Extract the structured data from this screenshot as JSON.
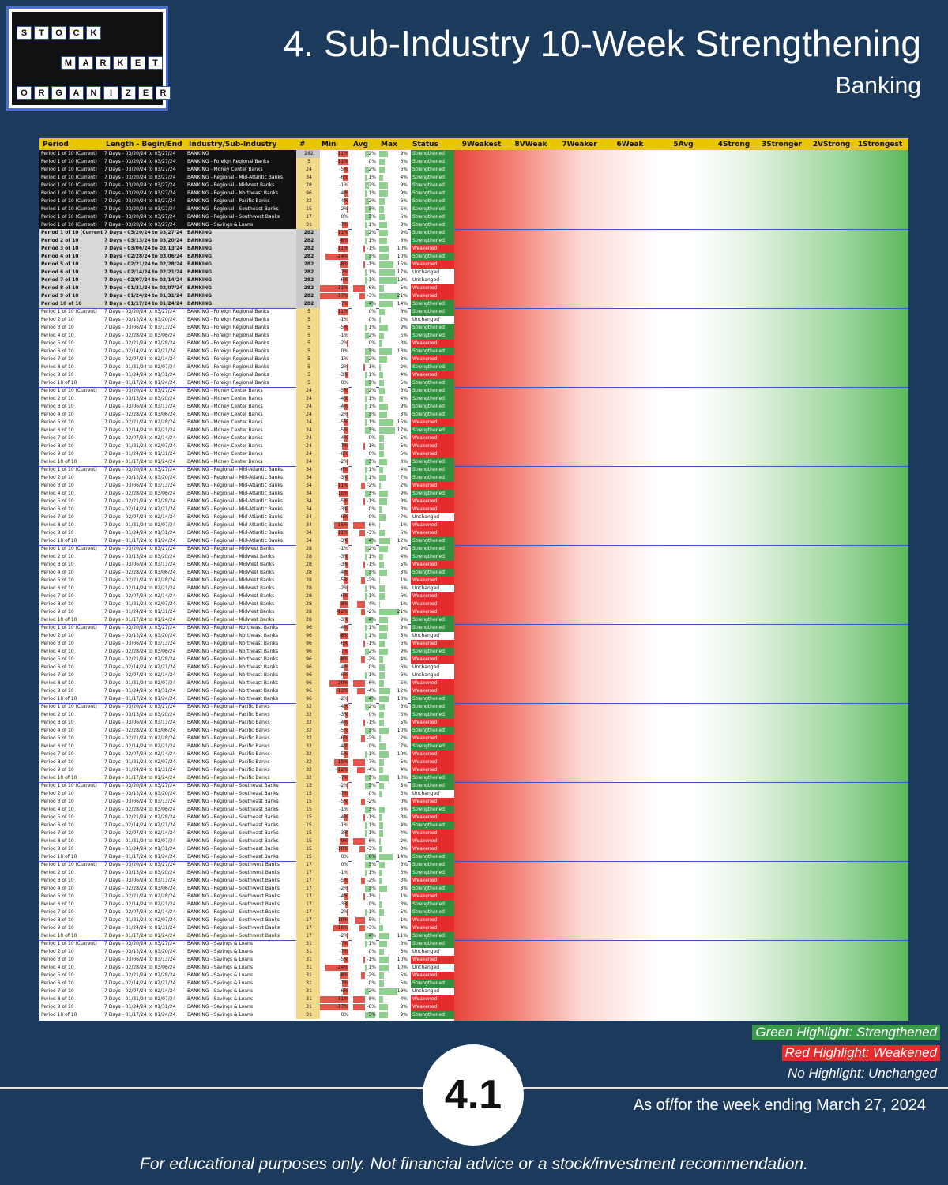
{
  "logo": {
    "row1": [
      "S",
      "T",
      "O",
      "C",
      "K"
    ],
    "row2": [
      "M",
      "A",
      "R",
      "K",
      "E",
      "T"
    ],
    "row3": [
      "O",
      "R",
      "G",
      "A",
      "N",
      "I",
      "Z",
      "E",
      "R"
    ]
  },
  "header": {
    "title": "4. Sub-Industry 10-Week Strengthening",
    "subtitle": "Banking"
  },
  "table": {
    "columns": [
      "Period",
      "Length - Begin/End",
      "Industry/Sub-Industry",
      "#",
      "Min",
      "Avg",
      "Max",
      "Status",
      "9Weakest",
      "8VWeak",
      "7Weaker",
      "6Weak",
      "5Avg",
      "4Strong",
      "3Stronger",
      "2VStrong",
      "1Strongest"
    ],
    "summary_rows": [
      {
        "p": "Period 1 of 10 (Current)",
        "l": "7 Days - 03/20/24 to 03/27/24",
        "i": "BANKING",
        "n": "282",
        "mn": "-11%",
        "av": "2%",
        "mx": "9%",
        "s": "Strengthened"
      },
      {
        "p": "Period 1 of 10 (Current)",
        "l": "7 Days - 03/20/24 to 03/27/24",
        "i": "BANKING - Foreign Regional Banks",
        "n": "5",
        "mn": "-11%",
        "av": "0%",
        "mx": "6%",
        "s": "Strengthened"
      },
      {
        "p": "Period 1 of 10 (Current)",
        "l": "7 Days - 03/20/24 to 03/27/24",
        "i": "BANKING - Money Center Banks",
        "n": "24",
        "mn": "-5%",
        "av": "2%",
        "mx": "6%",
        "s": "Strengthened"
      },
      {
        "p": "Period 1 of 10 (Current)",
        "l": "7 Days - 03/20/24 to 03/27/24",
        "i": "BANKING - Regional - Mid-Atlantic Banks",
        "n": "34",
        "mn": "-6%",
        "av": "1%",
        "mx": "4%",
        "s": "Strengthened"
      },
      {
        "p": "Period 1 of 10 (Current)",
        "l": "7 Days - 03/20/24 to 03/27/24",
        "i": "BANKING - Regional - Midwest Banks",
        "n": "28",
        "mn": "-1%",
        "av": "2%",
        "mx": "9%",
        "s": "Strengthened"
      },
      {
        "p": "Period 1 of 10 (Current)",
        "l": "7 Days - 03/20/24 to 03/27/24",
        "i": "BANKING - Regional - Northeast Banks",
        "n": "96",
        "mn": "-4%",
        "av": "1%",
        "mx": "9%",
        "s": "Strengthened"
      },
      {
        "p": "Period 1 of 10 (Current)",
        "l": "7 Days - 03/20/24 to 03/27/24",
        "i": "BANKING - Regional - Pacific Banks",
        "n": "32",
        "mn": "-4%",
        "av": "2%",
        "mx": "6%",
        "s": "Strengthened"
      },
      {
        "p": "Period 1 of 10 (Current)",
        "l": "7 Days - 03/20/24 to 03/27/24",
        "i": "BANKING - Regional - Southeast Banks",
        "n": "15",
        "mn": "-2%",
        "av": "3%",
        "mx": "5%",
        "s": "Strengthened"
      },
      {
        "p": "Period 1 of 10 (Current)",
        "l": "7 Days - 03/20/24 to 03/27/24",
        "i": "BANKING - Regional - Southwest Banks",
        "n": "17",
        "mn": "0%",
        "av": "3%",
        "mx": "6%",
        "s": "Strengthened"
      },
      {
        "p": "Period 1 of 10 (Current)",
        "l": "7 Days - 03/20/24 to 03/27/24",
        "i": "BANKING - Savings & Loans",
        "n": "31",
        "mn": "-7%",
        "av": "1%",
        "mx": "8%",
        "s": "Strengthened"
      }
    ],
    "banking_rows": [
      {
        "p": "Period 1 of 10 (Current)",
        "l": "7 Days - 03/20/24 to 03/27/24",
        "i": "BANKING",
        "n": "282",
        "mn": "-11%",
        "av": "2%",
        "mx": "9%",
        "s": "Strengthened"
      },
      {
        "p": "Period 2 of 10",
        "l": "7 Days - 03/13/24 to 03/20/24",
        "i": "BANKING",
        "n": "282",
        "mn": "-8%",
        "av": "1%",
        "mx": "8%",
        "s": "Strengthened"
      },
      {
        "p": "Period 3 of 10",
        "l": "7 Days - 03/06/24 to 03/13/24",
        "i": "BANKING",
        "n": "282",
        "mn": "-11%",
        "av": "-1%",
        "mx": "10%",
        "s": "Weakened"
      },
      {
        "p": "Period 4 of 10",
        "l": "7 Days - 02/28/24 to 03/06/24",
        "i": "BANKING",
        "n": "282",
        "mn": "-24%",
        "av": "3%",
        "mx": "10%",
        "s": "Strengthened"
      },
      {
        "p": "Period 5 of 10",
        "l": "7 Days - 02/21/24 to 02/28/24",
        "i": "BANKING",
        "n": "282",
        "mn": "-8%",
        "av": "-1%",
        "mx": "15%",
        "s": "Weakened"
      },
      {
        "p": "Period 6 of 10",
        "l": "7 Days - 02/14/24 to 02/21/24",
        "i": "BANKING",
        "n": "282",
        "mn": "-7%",
        "av": "1%",
        "mx": "17%",
        "s": "Unchanged"
      },
      {
        "p": "Period 7 of 10",
        "l": "7 Days - 02/07/24 to 02/14/24",
        "i": "BANKING",
        "n": "282",
        "mn": "-6%",
        "av": "1%",
        "mx": "19%",
        "s": "Unchanged"
      },
      {
        "p": "Period 8 of 10",
        "l": "7 Days - 01/31/24 to 02/07/24",
        "i": "BANKING",
        "n": "282",
        "mn": "-31%",
        "av": "-6%",
        "mx": "5%",
        "s": "Weakened"
      },
      {
        "p": "Period 9 of 10",
        "l": "7 Days - 01/24/24 to 01/31/24",
        "i": "BANKING",
        "n": "282",
        "mn": "-37%",
        "av": "-3%",
        "mx": "21%",
        "s": "Weakened"
      },
      {
        "p": "Period 10 of 10",
        "l": "7 Days - 01/17/24 to 01/24/24",
        "i": "BANKING",
        "n": "282",
        "mn": "-7%",
        "av": "4%",
        "mx": "14%",
        "s": "Strengthened"
      }
    ],
    "groups": [
      {
        "i": "BANKING - Foreign Regional Banks",
        "n": "5",
        "rows": [
          [
            "-11%",
            "0%",
            "6%",
            "Strengthened"
          ],
          [
            "-1%",
            "0%",
            "2%",
            "Unchanged"
          ],
          [
            "-5%",
            "1%",
            "9%",
            "Strengthened"
          ],
          [
            "-1%",
            "2%",
            "5%",
            "Strengthened"
          ],
          [
            "-2%",
            "0%",
            "3%",
            "Weakened"
          ],
          [
            "0%",
            "3%",
            "13%",
            "Strengthened"
          ],
          [
            "-1%",
            "2%",
            "8%",
            "Weakened"
          ],
          [
            "-2%",
            "-1%",
            "2%",
            "Strengthened"
          ],
          [
            "-3%",
            "1%",
            "4%",
            "Weakened"
          ],
          [
            "0%",
            "3%",
            "5%",
            "Strengthened"
          ]
        ]
      },
      {
        "i": "BANKING - Money Center Banks",
        "n": "24",
        "rows": [
          [
            "-5%",
            "2%",
            "6%",
            "Strengthened"
          ],
          [
            "-4%",
            "1%",
            "4%",
            "Strengthened"
          ],
          [
            "-4%",
            "1%",
            "9%",
            "Strengthened"
          ],
          [
            "-2%",
            "3%",
            "8%",
            "Strengthened"
          ],
          [
            "-5%",
            "1%",
            "15%",
            "Weakened"
          ],
          [
            "-5%",
            "3%",
            "17%",
            "Strengthened"
          ],
          [
            "-4%",
            "0%",
            "5%",
            "Weakened"
          ],
          [
            "-7%",
            "-1%",
            "5%",
            "Weakened"
          ],
          [
            "-6%",
            "0%",
            "5%",
            "Weakened"
          ],
          [
            "-2%",
            "3%",
            "8%",
            "Strengthened"
          ]
        ]
      },
      {
        "i": "BANKING - Regional - Mid-Atlantic Banks",
        "n": "34",
        "rows": [
          [
            "-6%",
            "1%",
            "4%",
            "Strengthened"
          ],
          [
            "-3%",
            "1%",
            "7%",
            "Strengthened"
          ],
          [
            "-11%",
            "-2%",
            "2%",
            "Weakened"
          ],
          [
            "-10%",
            "3%",
            "9%",
            "Strengthened"
          ],
          [
            "-5%",
            "-1%",
            "8%",
            "Weakened"
          ],
          [
            "-3%",
            "0%",
            "3%",
            "Weakened"
          ],
          [
            "-6%",
            "0%",
            "7%",
            "Unchanged"
          ],
          [
            "-15%",
            "-6%",
            "-1%",
            "Weakened"
          ],
          [
            "-11%",
            "-3%",
            "6%",
            "Weakened"
          ],
          [
            "-3%",
            "4%",
            "12%",
            "Strengthened"
          ]
        ]
      },
      {
        "i": "BANKING - Regional - Midwest Banks",
        "n": "28",
        "rows": [
          [
            "-1%",
            "2%",
            "9%",
            "Strengthened"
          ],
          [
            "-3%",
            "1%",
            "4%",
            "Strengthened"
          ],
          [
            "-3%",
            "-1%",
            "5%",
            "Weakened"
          ],
          [
            "-4%",
            "3%",
            "8%",
            "Strengthened"
          ],
          [
            "-5%",
            "-2%",
            "1%",
            "Weakened"
          ],
          [
            "-2%",
            "1%",
            "6%",
            "Unchanged"
          ],
          [
            "-6%",
            "1%",
            "6%",
            "Weakened"
          ],
          [
            "-9%",
            "-4%",
            "1%",
            "Weakened"
          ],
          [
            "-12%",
            "-2%",
            "21%",
            "Weakened"
          ],
          [
            "-3%",
            "4%",
            "9%",
            "Strengthened"
          ]
        ]
      },
      {
        "i": "BANKING - Regional - Northeast Banks",
        "n": "96",
        "rows": [
          [
            "-4%",
            "1%",
            "9%",
            "Strengthened"
          ],
          [
            "-8%",
            "1%",
            "8%",
            "Unchanged"
          ],
          [
            "-6%",
            "-1%",
            "6%",
            "Weakened"
          ],
          [
            "-7%",
            "2%",
            "9%",
            "Strengthened"
          ],
          [
            "-8%",
            "-2%",
            "4%",
            "Weakened"
          ],
          [
            "-4%",
            "0%",
            "6%",
            "Unchanged"
          ],
          [
            "-6%",
            "1%",
            "6%",
            "Unchanged"
          ],
          [
            "-20%",
            "-6%",
            "5%",
            "Weakened"
          ],
          [
            "-13%",
            "-4%",
            "12%",
            "Weakened"
          ],
          [
            "-2%",
            "4%",
            "10%",
            "Strengthened"
          ]
        ]
      },
      {
        "i": "BANKING - Regional - Pacific Banks",
        "n": "32",
        "rows": [
          [
            "-4%",
            "2%",
            "6%",
            "Strengthened"
          ],
          [
            "-3%",
            "0%",
            "5%",
            "Strengthened"
          ],
          [
            "-4%",
            "-1%",
            "5%",
            "Weakened"
          ],
          [
            "-5%",
            "3%",
            "10%",
            "Strengthened"
          ],
          [
            "-6%",
            "-2%",
            "2%",
            "Weakened"
          ],
          [
            "-4%",
            "0%",
            "7%",
            "Strengthened"
          ],
          [
            "-5%",
            "1%",
            "10%",
            "Weakened"
          ],
          [
            "-15%",
            "-7%",
            "5%",
            "Weakened"
          ],
          [
            "-12%",
            "-4%",
            "4%",
            "Weakened"
          ],
          [
            "-7%",
            "3%",
            "10%",
            "Strengthened"
          ]
        ]
      },
      {
        "i": "BANKING - Regional - Southeast Banks",
        "n": "15",
        "rows": [
          [
            "-2%",
            "3%",
            "5%",
            "Strengthened"
          ],
          [
            "-7%",
            "0%",
            "3%",
            "Unchanged"
          ],
          [
            "-5%",
            "-2%",
            "0%",
            "Weakened"
          ],
          [
            "-1%",
            "3%",
            "6%",
            "Strengthened"
          ],
          [
            "-4%",
            "-1%",
            "3%",
            "Weakened"
          ],
          [
            "-1%",
            "1%",
            "4%",
            "Strengthened"
          ],
          [
            "-3%",
            "1%",
            "4%",
            "Weakened"
          ],
          [
            "-9%",
            "-6%",
            "-2%",
            "Weakened"
          ],
          [
            "-10%",
            "-3%",
            "3%",
            "Weakened"
          ],
          [
            "0%",
            "6%",
            "14%",
            "Strengthened"
          ]
        ]
      },
      {
        "i": "BANKING - Regional - Southwest Banks",
        "n": "17",
        "rows": [
          [
            "0%",
            "3%",
            "6%",
            "Strengthened"
          ],
          [
            "-1%",
            "1%",
            "3%",
            "Strengthened"
          ],
          [
            "-5%",
            "-2%",
            "3%",
            "Weakened"
          ],
          [
            "-2%",
            "3%",
            "8%",
            "Strengthened"
          ],
          [
            "-4%",
            "-1%",
            "1%",
            "Weakened"
          ],
          [
            "-3%",
            "0%",
            "3%",
            "Strengthened"
          ],
          [
            "-2%",
            "1%",
            "5%",
            "Strengthened"
          ],
          [
            "-10%",
            "-5%",
            "-1%",
            "Weakened"
          ],
          [
            "-16%",
            "-3%",
            "4%",
            "Weakened"
          ],
          [
            "-2%",
            "4%",
            "11%",
            "Strengthened"
          ]
        ]
      },
      {
        "i": "BANKING - Savings & Loans",
        "n": "31",
        "rows": [
          [
            "-7%",
            "1%",
            "8%",
            "Strengthened"
          ],
          [
            "-7%",
            "0%",
            "5%",
            "Unchanged"
          ],
          [
            "-5%",
            "-1%",
            "10%",
            "Weakened"
          ],
          [
            "-24%",
            "1%",
            "10%",
            "Unchanged"
          ],
          [
            "-8%",
            "-2%",
            "5%",
            "Weakened"
          ],
          [
            "-7%",
            "0%",
            "5%",
            "Strengthened"
          ],
          [
            "-6%",
            "2%",
            "19%",
            "Unchanged"
          ],
          [
            "-31%",
            "-8%",
            "4%",
            "Weakened"
          ],
          [
            "-37%",
            "-6%",
            "9%",
            "Weakened"
          ],
          [
            "0%",
            "5%",
            "9%",
            "Strengthened"
          ]
        ]
      }
    ],
    "period_labels": [
      "Period 1 of 10 (Current)",
      "Period 2 of 10",
      "Period 3 of 10",
      "Period 4 of 10",
      "Period 5 of 10",
      "Period 6 of 10",
      "Period 7 of 10",
      "Period 8 of 10",
      "Period 9 of 10",
      "Period 10 of 10"
    ],
    "length_labels": [
      "7 Days - 03/20/24 to 03/27/24",
      "7 Days - 03/13/24 to 03/20/24",
      "7 Days - 03/06/24 to 03/13/24",
      "7 Days - 02/28/24 to 03/06/24",
      "7 Days - 02/21/24 to 02/28/24",
      "7 Days - 02/14/24 to 02/21/24",
      "7 Days - 02/07/24 to 02/14/24",
      "7 Days - 01/31/24 to 02/07/24",
      "7 Days - 01/24/24 to 01/31/24",
      "7 Days - 01/17/24 to 01/24/24"
    ]
  },
  "legend": {
    "green": "Green Highlight: Strengthened",
    "red": "Red Highlight: Weakened",
    "none": "No Highlight: Unchanged"
  },
  "badge": "4.1",
  "as_of": "As of/for the week ending March 27, 2024",
  "footer": "For educational purposes only. Not financial advice or a stock/investment recommendation.",
  "colors": {
    "background": "#1b3a5c",
    "strengthened": "#3a9a4a",
    "weakened": "#e52b2b",
    "header": "#e8c700"
  }
}
